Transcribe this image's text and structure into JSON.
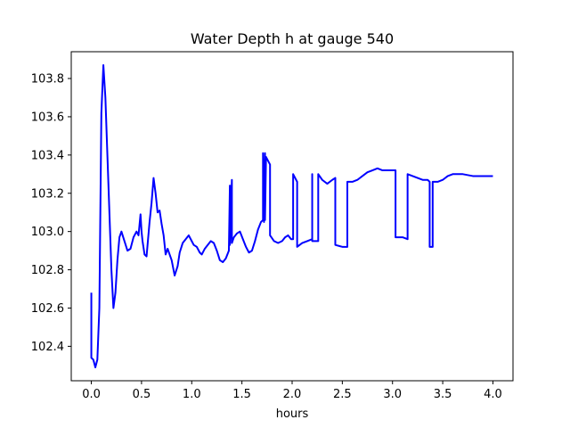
{
  "chart_data": {
    "type": "line",
    "title": "Water Depth h at gauge 540",
    "xlabel": "hours",
    "ylabel": "",
    "xlim": [
      -0.2,
      4.2
    ],
    "ylim": [
      102.22,
      103.94
    ],
    "grid": false,
    "xticks": [
      0.0,
      0.5,
      1.0,
      1.5,
      2.0,
      2.5,
      3.0,
      3.5,
      4.0
    ],
    "xtick_labels": [
      "0.0",
      "0.5",
      "1.0",
      "1.5",
      "2.0",
      "2.5",
      "3.0",
      "3.5",
      "4.0"
    ],
    "yticks": [
      102.4,
      102.6,
      102.8,
      103.0,
      103.2,
      103.4,
      103.6,
      103.8
    ],
    "ytick_labels": [
      "102.4",
      "102.6",
      "102.8",
      "103.0",
      "103.2",
      "103.4",
      "103.6",
      "103.8"
    ],
    "series": [
      {
        "color": "#0000ff",
        "x": [
          0.0,
          0.0,
          0.02,
          0.04,
          0.06,
          0.08,
          0.1,
          0.12,
          0.14,
          0.16,
          0.18,
          0.2,
          0.22,
          0.24,
          0.26,
          0.28,
          0.3,
          0.33,
          0.36,
          0.39,
          0.42,
          0.45,
          0.47,
          0.49,
          0.5,
          0.51,
          0.53,
          0.55,
          0.58,
          0.6,
          0.62,
          0.64,
          0.66,
          0.68,
          0.7,
          0.72,
          0.74,
          0.76,
          0.78,
          0.8,
          0.83,
          0.86,
          0.88,
          0.91,
          0.94,
          0.97,
          1.0,
          1.02,
          1.05,
          1.08,
          1.1,
          1.13,
          1.16,
          1.19,
          1.22,
          1.25,
          1.28,
          1.31,
          1.34,
          1.37,
          1.38,
          1.38,
          1.4,
          1.4,
          1.42,
          1.45,
          1.48,
          1.51,
          1.54,
          1.57,
          1.6,
          1.63,
          1.66,
          1.69,
          1.71,
          1.71,
          1.72,
          1.73,
          1.73,
          1.74,
          1.76,
          1.78,
          1.78,
          1.82,
          1.86,
          1.9,
          1.93,
          1.96,
          1.99,
          2.01,
          2.01,
          2.05,
          2.05,
          2.1,
          2.15,
          2.2,
          2.2,
          2.2,
          2.26,
          2.26,
          2.3,
          2.35,
          2.4,
          2.43,
          2.43,
          2.5,
          2.55,
          2.55,
          2.6,
          2.65,
          2.7,
          2.75,
          2.8,
          2.85,
          2.9,
          2.95,
          3.0,
          3.03,
          3.03,
          3.1,
          3.15,
          3.15,
          3.2,
          3.25,
          3.3,
          3.35,
          3.37,
          3.37,
          3.4,
          3.4,
          3.45,
          3.5,
          3.55,
          3.6,
          3.7,
          3.8,
          3.9,
          4.0
        ],
        "y": [
          102.68,
          102.34,
          102.33,
          102.29,
          102.33,
          102.6,
          103.62,
          103.87,
          103.7,
          103.4,
          103.1,
          102.8,
          102.6,
          102.68,
          102.85,
          102.97,
          103.0,
          102.95,
          102.9,
          102.91,
          102.97,
          103.0,
          102.98,
          103.09,
          103.0,
          102.95,
          102.88,
          102.87,
          103.05,
          103.15,
          103.28,
          103.2,
          103.1,
          103.11,
          103.04,
          102.98,
          102.88,
          102.91,
          102.88,
          102.85,
          102.77,
          102.82,
          102.89,
          102.94,
          102.96,
          102.98,
          102.95,
          102.93,
          102.92,
          102.89,
          102.88,
          102.91,
          102.93,
          102.95,
          102.94,
          102.9,
          102.85,
          102.84,
          102.86,
          102.9,
          103.24,
          102.93,
          103.27,
          102.94,
          102.97,
          102.99,
          103.0,
          102.96,
          102.92,
          102.89,
          102.9,
          102.95,
          103.01,
          103.05,
          103.06,
          103.41,
          103.05,
          103.41,
          103.06,
          103.39,
          103.37,
          103.35,
          102.98,
          102.95,
          102.94,
          102.95,
          102.97,
          102.98,
          102.96,
          102.96,
          103.3,
          103.26,
          102.92,
          102.94,
          102.95,
          102.96,
          103.3,
          102.95,
          102.95,
          103.3,
          103.27,
          103.25,
          103.27,
          103.28,
          102.93,
          102.92,
          102.92,
          103.26,
          103.26,
          103.27,
          103.29,
          103.31,
          103.32,
          103.33,
          103.32,
          103.32,
          103.32,
          103.32,
          102.97,
          102.97,
          102.96,
          103.3,
          103.29,
          103.28,
          103.27,
          103.27,
          103.26,
          102.92,
          102.92,
          103.26,
          103.26,
          103.27,
          103.29,
          103.3,
          103.3,
          103.29,
          103.29,
          103.29
        ]
      }
    ]
  }
}
